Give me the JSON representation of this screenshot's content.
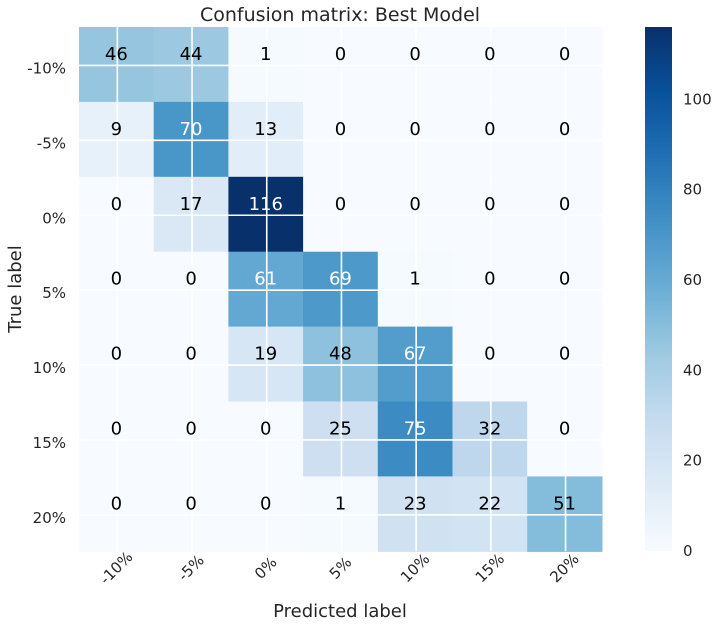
{
  "chart_data": {
    "type": "heatmap",
    "title": "Confusion matrix: Best Model",
    "xlabel": "Predicted label",
    "ylabel": "True label",
    "x_categories": [
      "-10%",
      "-5%",
      "0%",
      "5%",
      "10%",
      "15%",
      "20%"
    ],
    "y_categories": [
      "-10%",
      "-5%",
      "0%",
      "5%",
      "10%",
      "15%",
      "20%"
    ],
    "values": [
      [
        46,
        44,
        1,
        0,
        0,
        0,
        0
      ],
      [
        9,
        70,
        13,
        0,
        0,
        0,
        0
      ],
      [
        0,
        17,
        116,
        0,
        0,
        0,
        0
      ],
      [
        0,
        0,
        61,
        69,
        1,
        0,
        0
      ],
      [
        0,
        0,
        19,
        48,
        67,
        0,
        0
      ],
      [
        0,
        0,
        0,
        25,
        75,
        32,
        0
      ],
      [
        0,
        0,
        0,
        1,
        23,
        22,
        51
      ]
    ],
    "colormap": "Blues",
    "color_low": "#f7fbff",
    "color_high": "#08306b",
    "vmin": 0,
    "vmax": 116,
    "colorbar_ticks": [
      0,
      20,
      40,
      60,
      80,
      100
    ],
    "grid": true
  }
}
